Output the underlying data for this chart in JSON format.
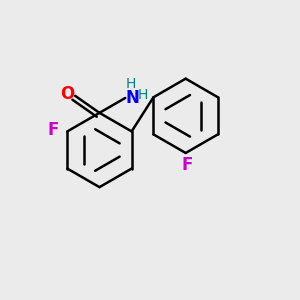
{
  "background_color": "#ebebeb",
  "bond_color": "#000000",
  "bond_width": 1.8,
  "dbo": 0.055,
  "shrink": 0.12,
  "atom_colors": {
    "F": "#cc00cc",
    "O": "#ff0000",
    "N": "#0000ff",
    "H": "#008080"
  },
  "r1cx": 0.33,
  "r1cy": 0.5,
  "r2cx": 0.62,
  "r2cy": 0.615,
  "ring_r": 0.125,
  "fig_size": [
    3.0,
    3.0
  ],
  "dpi": 100
}
